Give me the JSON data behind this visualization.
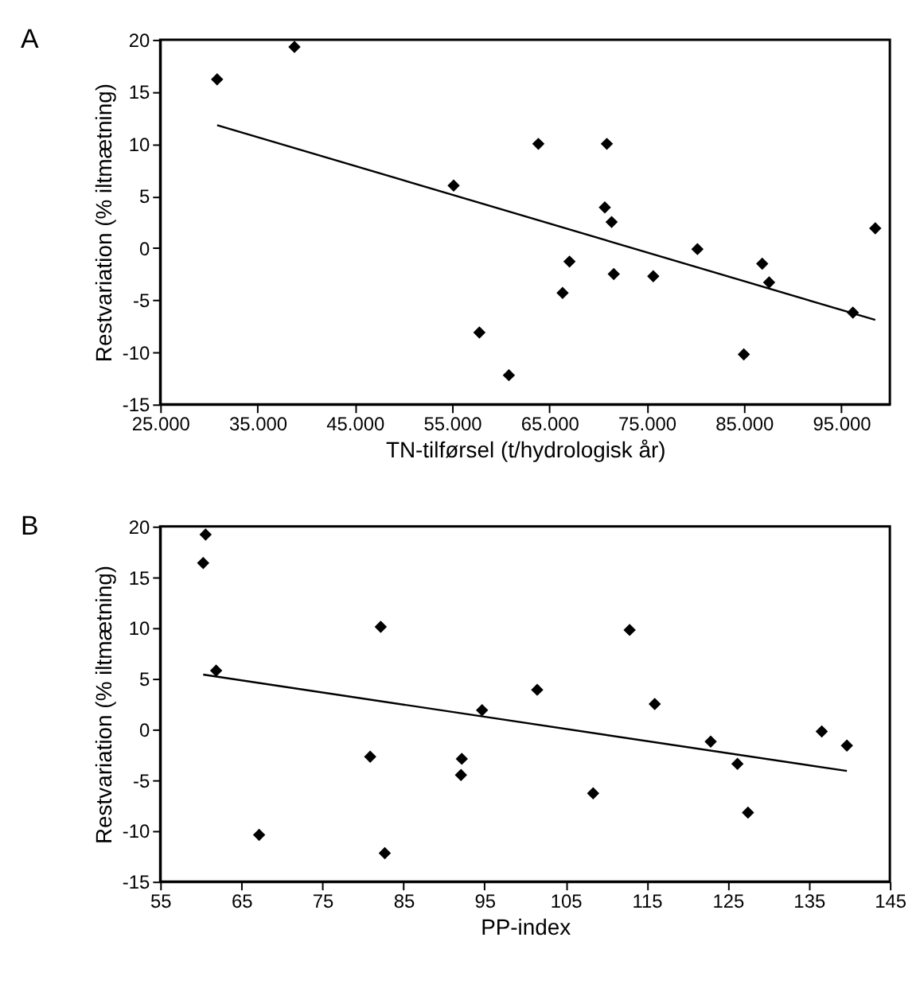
{
  "chart_data": [
    {
      "type": "scatter",
      "annotations": [
        "A"
      ],
      "xlabel": "TN-tilførsel (t/hydrologisk år)",
      "ylabel": "Restvariation (% iltmætning)",
      "grid": false,
      "xlim": [
        25000,
        100000
      ],
      "ylim": [
        -15,
        20
      ],
      "xticks": [
        {
          "value": 25000,
          "label": "25.000"
        },
        {
          "value": 35000,
          "label": "35.000"
        },
        {
          "value": 45000,
          "label": "45.000"
        },
        {
          "value": 55000,
          "label": "55.000"
        },
        {
          "value": 65000,
          "label": "65.000"
        },
        {
          "value": 75000,
          "label": "75.000"
        },
        {
          "value": 85000,
          "label": "85.000"
        },
        {
          "value": 95000,
          "label": "95.000"
        }
      ],
      "yticks": [
        -15,
        -10,
        -5,
        0,
        5,
        10,
        15,
        20
      ],
      "series": [
        {
          "marker": "diamond",
          "color": "#000000",
          "x": [
            30850,
            38800,
            63870,
            70910,
            55160,
            70700,
            71400,
            98500,
            80220,
            67070,
            71620,
            75680,
            66360,
            86880,
            87590,
            96200,
            57810,
            84990,
            60840
          ],
          "values": [
            16.2,
            19.3,
            10.0,
            10.0,
            6.0,
            3.9,
            2.5,
            1.9,
            -0.1,
            -1.3,
            -2.5,
            -2.7,
            -4.3,
            -1.5,
            -3.3,
            -6.2,
            -8.1,
            -10.2,
            -12.2
          ]
        },
        {
          "type": "line",
          "marker": "none",
          "color": "#000000",
          "x": [
            30850,
            98500
          ],
          "values": [
            11.8,
            -6.9
          ]
        }
      ]
    },
    {
      "type": "scatter",
      "annotations": [
        "B"
      ],
      "xlabel": "PP-index",
      "ylabel": "Restvariation (% iltmætning)",
      "grid": false,
      "xlim": [
        55,
        145
      ],
      "ylim": [
        -15,
        20
      ],
      "xticks": [
        55,
        65,
        75,
        85,
        95,
        105,
        115,
        125,
        135,
        145
      ],
      "yticks": [
        -15,
        -10,
        -5,
        0,
        5,
        10,
        15,
        20
      ],
      "series": [
        {
          "marker": "diamond",
          "color": "#000000",
          "x": [
            60.6,
            60.3,
            61.9,
            67.2,
            82.2,
            80.9,
            82.7,
            94.7,
            92.2,
            92.1,
            101.5,
            108.4,
            112.9,
            116.0,
            122.9,
            126.2,
            127.5,
            136.6,
            139.7
          ],
          "values": [
            19.2,
            16.4,
            5.8,
            -10.4,
            10.1,
            -2.7,
            -12.2,
            1.9,
            -2.9,
            -4.5,
            3.9,
            -6.3,
            9.8,
            2.5,
            -1.2,
            -3.4,
            -8.2,
            -0.2,
            -1.6
          ]
        },
        {
          "type": "line",
          "marker": "none",
          "color": "#000000",
          "x": [
            60.3,
            139.7
          ],
          "values": [
            5.4,
            -4.1
          ]
        }
      ]
    }
  ]
}
